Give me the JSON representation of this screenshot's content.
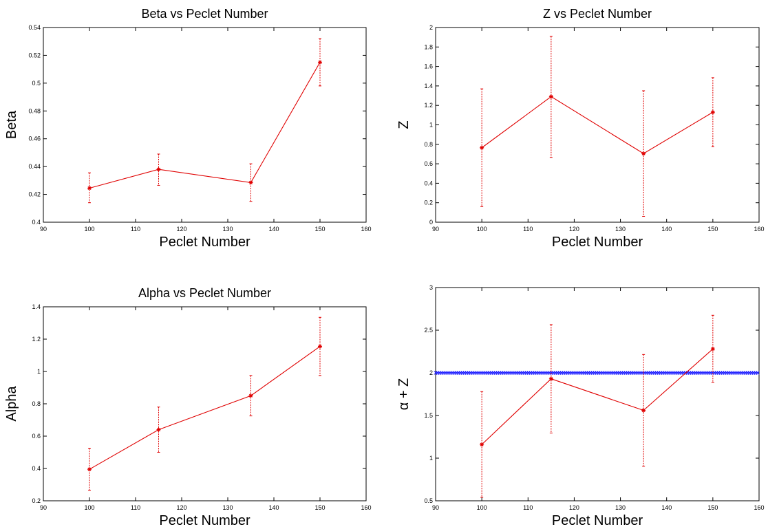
{
  "colors": {
    "series": "#e00000",
    "reference": "#1a1aff",
    "axes": "#000000"
  },
  "chart_data": [
    {
      "type": "line",
      "title": "Beta vs Peclet Number",
      "xlabel": "Peclet Number",
      "ylabel": "Beta",
      "xlim": [
        90,
        160
      ],
      "ylim": [
        0.4,
        0.54
      ],
      "xticks": [
        "90",
        "100",
        "110",
        "120",
        "130",
        "140",
        "150",
        "160"
      ],
      "yticks": [
        "0.4",
        "0.42",
        "0.44",
        "0.46",
        "0.48",
        "0.5",
        "0.52",
        "0.54"
      ],
      "grid": false,
      "series": [
        {
          "x": [
            100,
            115,
            135,
            150
          ],
          "y": [
            0.4245,
            0.438,
            0.4285,
            0.515
          ],
          "err_low": [
            0.0105,
            0.0115,
            0.0135,
            0.017
          ],
          "err_high": [
            0.011,
            0.011,
            0.0135,
            0.017
          ]
        }
      ]
    },
    {
      "type": "line",
      "title": "Z vs Peclet Number",
      "xlabel": "Peclet Number",
      "ylabel": "Z",
      "xlim": [
        90,
        160
      ],
      "ylim": [
        0,
        2
      ],
      "xticks": [
        "90",
        "100",
        "110",
        "120",
        "130",
        "140",
        "150",
        "160"
      ],
      "yticks": [
        "0",
        "0.2",
        "0.4",
        "0.6",
        "0.8",
        "1",
        "1.2",
        "1.4",
        "1.6",
        "1.8",
        "2"
      ],
      "grid": false,
      "series": [
        {
          "x": [
            100,
            115,
            135,
            150
          ],
          "y": [
            0.765,
            1.29,
            0.705,
            1.13
          ],
          "err_low": [
            0.605,
            0.625,
            0.645,
            0.355
          ],
          "err_high": [
            0.605,
            0.62,
            0.645,
            0.355
          ]
        }
      ]
    },
    {
      "type": "line",
      "title": "Alpha vs Peclet Number",
      "xlabel": "Peclet Number",
      "ylabel": "Alpha",
      "xlim": [
        90,
        160
      ],
      "ylim": [
        0.2,
        1.4
      ],
      "xticks": [
        "90",
        "100",
        "110",
        "120",
        "130",
        "140",
        "150",
        "160"
      ],
      "yticks": [
        "0.2",
        "0.4",
        "0.6",
        "0.8",
        "1",
        "1.2",
        "1.4"
      ],
      "grid": false,
      "series": [
        {
          "x": [
            100,
            115,
            135,
            150
          ],
          "y": [
            0.395,
            0.64,
            0.85,
            1.155
          ],
          "err_low": [
            0.13,
            0.14,
            0.125,
            0.18
          ],
          "err_high": [
            0.13,
            0.14,
            0.125,
            0.18
          ]
        }
      ]
    },
    {
      "type": "line",
      "title": "",
      "xlabel": "Peclet Number",
      "ylabel": "α + Z",
      "xlim": [
        90,
        160
      ],
      "ylim": [
        0.5,
        3
      ],
      "xticks": [
        "90",
        "100",
        "110",
        "120",
        "130",
        "140",
        "150",
        "160"
      ],
      "yticks": [
        "0.5",
        "1",
        "1.5",
        "2",
        "2.5",
        "3"
      ],
      "grid": false,
      "series": [
        {
          "x": [
            100,
            115,
            135,
            150
          ],
          "y": [
            1.16,
            1.93,
            1.56,
            2.28
          ],
          "err_low": [
            0.62,
            0.635,
            0.655,
            0.395
          ],
          "err_high": [
            0.62,
            0.635,
            0.655,
            0.395
          ]
        }
      ],
      "reference_line": {
        "y": 2
      }
    }
  ]
}
